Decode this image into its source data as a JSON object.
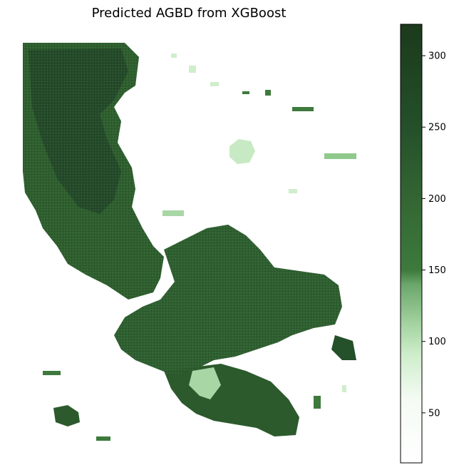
{
  "chart_data": {
    "type": "heatmap",
    "title": "Predicted AGBD from XGBoost",
    "xlabel": "",
    "ylabel": "",
    "axes_visible": false,
    "colorbar": {
      "position": "right",
      "range": [
        15,
        322
      ],
      "ticks": [
        50,
        100,
        150,
        200,
        250,
        300
      ],
      "colors": [
        {
          "value": 15,
          "color": "#ffffff"
        },
        {
          "value": 60,
          "color": "#f4fbf3"
        },
        {
          "value": 90,
          "color": "#cfeecc"
        },
        {
          "value": 110,
          "color": "#a8d7a5"
        },
        {
          "value": 140,
          "color": "#6ba66a"
        },
        {
          "value": 150,
          "color": "#3d7a3c"
        },
        {
          "value": 200,
          "color": "#336633"
        },
        {
          "value": 250,
          "color": "#24502a"
        },
        {
          "value": 322,
          "color": "#1b3a1b"
        }
      ]
    },
    "regions": [
      {
        "name": "northwest-forest",
        "agbd": 240
      },
      {
        "name": "central-forest",
        "agbd": 215
      },
      {
        "name": "southeast-forest",
        "agbd": 205
      },
      {
        "name": "light-patch-north",
        "agbd": 95
      },
      {
        "name": "sparse-edges",
        "agbd": 120
      },
      {
        "name": "background",
        "agbd": 20
      }
    ]
  }
}
